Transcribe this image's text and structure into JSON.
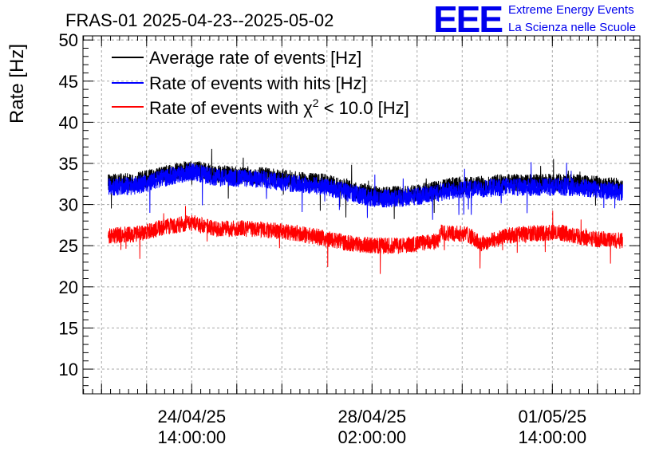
{
  "chart_data": {
    "type": "line",
    "title": "FRAS-01 2025-04-23--2025-05-02",
    "ylabel": "Rate [Hz]",
    "xlabel": "",
    "ylim": [
      7,
      50.5
    ],
    "yticks": [
      10,
      15,
      20,
      25,
      30,
      35,
      40,
      45,
      50
    ],
    "x_time_hours": {
      "start": 0,
      "end": 210,
      "data_start": 9.5,
      "data_end": 203.5
    },
    "x_tick_labels": [
      {
        "hour": 41,
        "line1": "24/04/25",
        "line2": "14:00:00"
      },
      {
        "hour": 109,
        "line1": "28/04/25",
        "line2": "02:00:00"
      },
      {
        "hour": 177,
        "line1": "01/05/25",
        "line2": "14:00:00"
      }
    ],
    "grid": true,
    "legend_position": "top-left",
    "series": [
      {
        "name": "Average rate of events [Hz]",
        "color": "#000000",
        "noise": 1.1,
        "keypoints": [
          [
            9.5,
            32.6
          ],
          [
            20,
            32.8
          ],
          [
            30,
            33.6
          ],
          [
            41,
            34.4
          ],
          [
            50,
            33.7
          ],
          [
            60,
            33.6
          ],
          [
            70,
            33.4
          ],
          [
            80,
            33.0
          ],
          [
            90,
            32.7
          ],
          [
            100,
            32.0
          ],
          [
            110,
            31.2
          ],
          [
            120,
            31.2
          ],
          [
            130,
            31.6
          ],
          [
            140,
            32.3
          ],
          [
            150,
            32.4
          ],
          [
            160,
            32.7
          ],
          [
            170,
            32.6
          ],
          [
            180,
            32.7
          ],
          [
            190,
            32.5
          ],
          [
            203.5,
            32.1
          ]
        ]
      },
      {
        "name": "Rate of events with hits [Hz]",
        "color": "#0000ff",
        "noise": 1.1,
        "keypoints": [
          [
            9.5,
            32.1
          ],
          [
            20,
            32.3
          ],
          [
            30,
            33.2
          ],
          [
            41,
            34.0
          ],
          [
            50,
            33.3
          ],
          [
            60,
            33.2
          ],
          [
            70,
            33.0
          ],
          [
            80,
            32.5
          ],
          [
            90,
            32.2
          ],
          [
            100,
            31.5
          ],
          [
            110,
            30.7
          ],
          [
            120,
            30.8
          ],
          [
            130,
            31.2
          ],
          [
            140,
            31.8
          ],
          [
            150,
            31.9
          ],
          [
            160,
            32.2
          ],
          [
            170,
            32.1
          ],
          [
            180,
            32.2
          ],
          [
            190,
            32.0
          ],
          [
            203.5,
            31.5
          ]
        ]
      },
      {
        "name": "Rate of events with χ² < 10.0 [Hz]",
        "color": "#ff0000",
        "noise": 1.0,
        "keypoints": [
          [
            9.5,
            26.2
          ],
          [
            20,
            26.4
          ],
          [
            30,
            27.2
          ],
          [
            41,
            27.8
          ],
          [
            50,
            27.0
          ],
          [
            60,
            27.1
          ],
          [
            70,
            26.9
          ],
          [
            80,
            26.5
          ],
          [
            90,
            26.0
          ],
          [
            100,
            25.3
          ],
          [
            110,
            25.0
          ],
          [
            120,
            25.0
          ],
          [
            130,
            25.4
          ],
          [
            134,
            25.6
          ],
          [
            135,
            26.6
          ],
          [
            145,
            26.4
          ],
          [
            150,
            25.2
          ],
          [
            160,
            26.2
          ],
          [
            170,
            26.5
          ],
          [
            180,
            26.6
          ],
          [
            190,
            25.9
          ],
          [
            203.5,
            25.6
          ]
        ]
      }
    ]
  },
  "legend_entries": [
    {
      "label_plain": "Average rate of events [Hz]",
      "color": "#000000"
    },
    {
      "label_plain": "Rate of events with hits [Hz]",
      "color": "#0000ff"
    },
    {
      "label_prefix": "Rate of events with ",
      "chi": "χ",
      "sup": "2",
      "label_suffix": " < 10.0 [Hz]",
      "color": "#ff0000"
    }
  ],
  "logo": {
    "mark": "EEE",
    "line1": "Extreme Energy Events",
    "line2": "La Scienza nelle Scuole",
    "color": "#0000ee"
  }
}
